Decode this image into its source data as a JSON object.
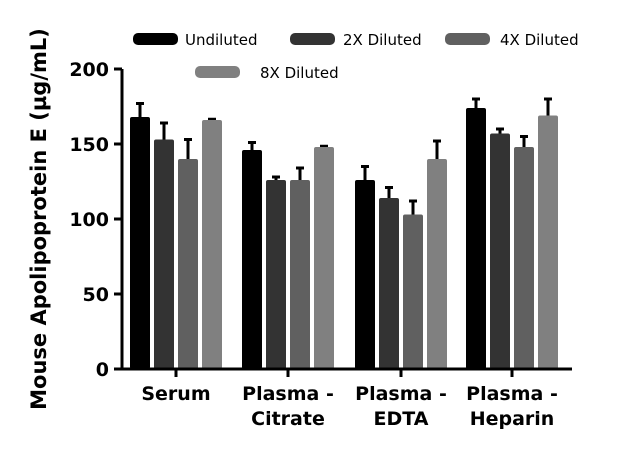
{
  "chart_data": {
    "type": "bar",
    "title": "",
    "xlabel": "",
    "ylabel": "Mouse Apolipoprotein E (µg/mL)",
    "ylim": [
      0,
      200
    ],
    "yticks": [
      "0",
      "50",
      "100",
      "150",
      "200"
    ],
    "categories": [
      [
        "Serum"
      ],
      [
        "Plasma -",
        "Citrate"
      ],
      [
        "Plasma -",
        "EDTA"
      ],
      [
        "Plasma -",
        "Heparin"
      ]
    ],
    "legend_position": "top",
    "grid": false,
    "series": [
      {
        "name": "Undiluted",
        "color": "#000000",
        "values": [
          168,
          146,
          126,
          174
        ],
        "error": [
          9,
          5,
          9,
          6
        ]
      },
      {
        "name": "2X Diluted",
        "color": "#333333",
        "values": [
          153,
          126,
          114,
          157
        ],
        "error": [
          11,
          2,
          7,
          3
        ]
      },
      {
        "name": "4X Diluted",
        "color": "#606060",
        "values": [
          140,
          126,
          103,
          148
        ],
        "error": [
          13,
          8,
          9,
          7
        ]
      },
      {
        "name": "8X Diluted",
        "color": "#808080",
        "values": [
          166,
          148,
          140,
          169
        ],
        "error": [
          0.5,
          0.5,
          12,
          11
        ]
      }
    ]
  }
}
